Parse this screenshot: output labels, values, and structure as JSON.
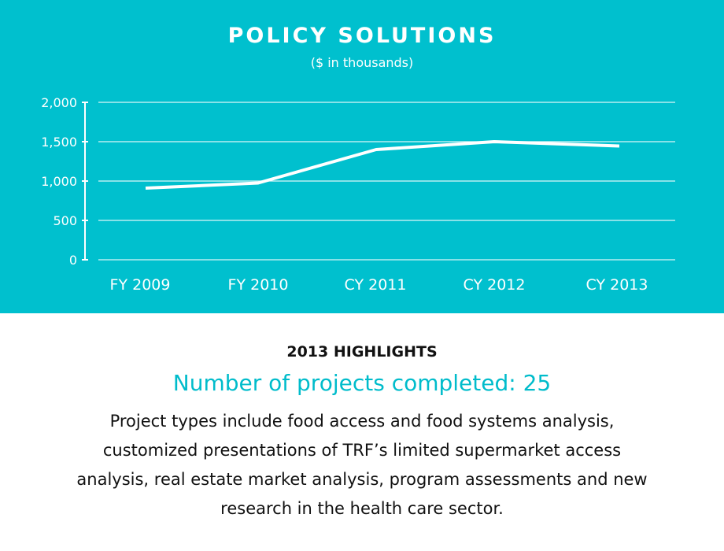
{
  "colors": {
    "background": "#00c0ce",
    "line": "#ffffff",
    "accent_text": "#00bccb"
  },
  "chart_data": {
    "type": "line",
    "title": "POLICY SOLUTIONS",
    "subtitle": "($ in thousands)",
    "categories": [
      "FY 2009",
      "FY 2010",
      "CY 2011",
      "CY 2012",
      "CY 2013"
    ],
    "series": [
      {
        "name": "Policy Solutions",
        "values": [
          910,
          975,
          1400,
          1500,
          1445
        ]
      }
    ],
    "ylim": [
      0,
      2000
    ],
    "yticks": [
      0,
      500,
      1000,
      1500,
      2000
    ],
    "ytick_labels": [
      "0",
      "500",
      "1,000",
      "1,500",
      "2,000"
    ],
    "grid": true,
    "xlabel": "",
    "ylabel": ""
  },
  "highlights": {
    "heading": "2013 HIGHLIGHTS",
    "count": "Number of projects completed: 25",
    "description": "Project types include food access and food systems analysis, customized presentations of TRF’s limited supermarket access analysis, real estate market analysis, program assessments and new research in the health care sector."
  }
}
